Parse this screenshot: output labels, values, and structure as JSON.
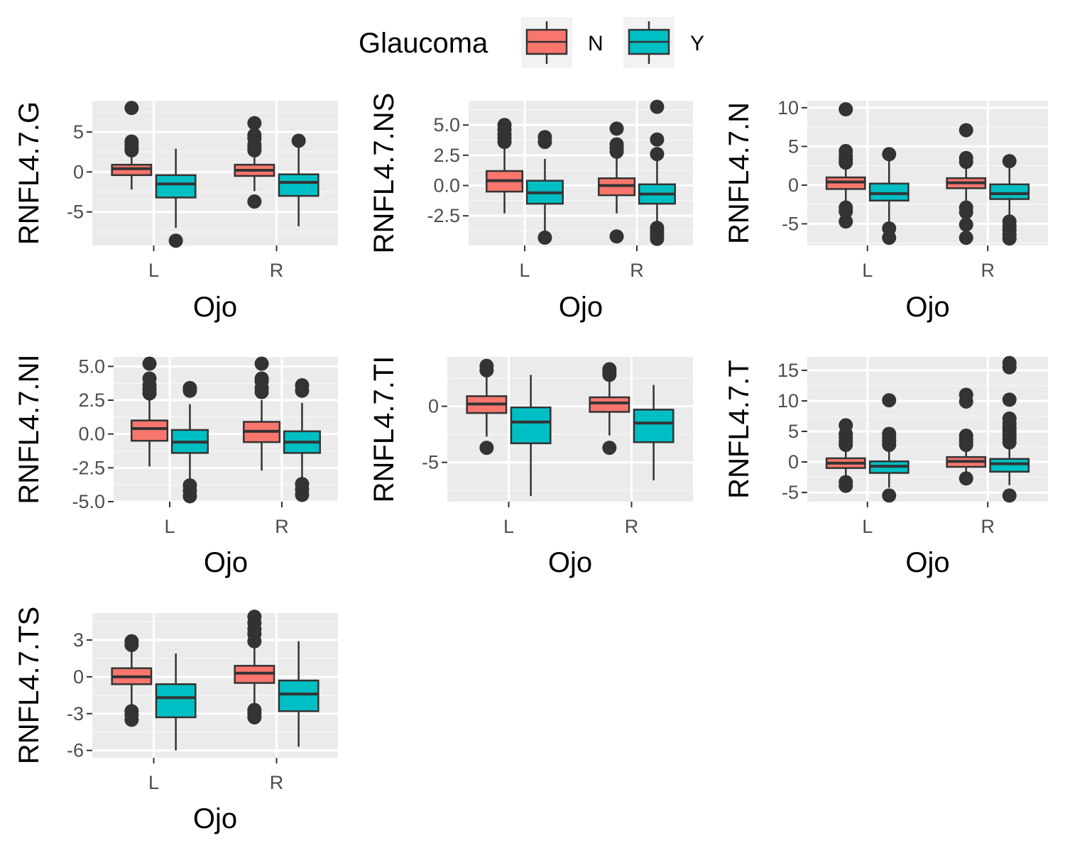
{
  "colors": {
    "panel_bg": "#EBEBEB",
    "grid_major": "#FFFFFF",
    "grid_minor": "#F5F5F5",
    "N": "#F8766D",
    "Y": "#00BFC4",
    "outline": "#333333",
    "tick_text": "#4D4D4D"
  },
  "legend": {
    "title": "Glaucoma",
    "items": [
      {
        "key": "N",
        "label": "N",
        "color": "#F8766D"
      },
      {
        "key": "Y",
        "label": "Y",
        "color": "#00BFC4"
      }
    ]
  },
  "chart_data": [
    {
      "type": "boxplot",
      "ylabel": "RNFL4.7.G",
      "xlabel": "Ojo",
      "categories": [
        "L",
        "R"
      ],
      "ylim": [
        -9.2,
        8.9
      ],
      "yticks": [
        -5,
        0,
        5
      ],
      "yticklabels": [
        "-5",
        "0",
        "5"
      ],
      "boxes": [
        {
          "x": "L",
          "group": "N",
          "whisker_low": -2.2,
          "q1": -0.4,
          "median": 0.4,
          "q3": 0.9,
          "whisker_high": 2.1,
          "outliers": [
            2.7,
            3.0,
            3.4,
            3.8,
            8.0
          ]
        },
        {
          "x": "L",
          "group": "Y",
          "whisker_low": -7.0,
          "q1": -3.2,
          "median": -1.5,
          "q3": -0.4,
          "whisker_high": 2.9,
          "outliers": [
            -8.6
          ]
        },
        {
          "x": "R",
          "group": "N",
          "whisker_low": -2.4,
          "q1": -0.5,
          "median": 0.2,
          "q3": 0.9,
          "whisker_high": 2.3,
          "outliers": [
            -3.7,
            2.7,
            3.1,
            3.4,
            4.2,
            4.6,
            6.1
          ]
        },
        {
          "x": "R",
          "group": "Y",
          "whisker_low": -6.8,
          "q1": -3.0,
          "median": -1.3,
          "q3": -0.3,
          "whisker_high": 3.7,
          "outliers": [
            3.9
          ]
        }
      ]
    },
    {
      "type": "boxplot",
      "ylabel": "RNFL4.7.NS",
      "xlabel": "Ojo",
      "categories": [
        "L",
        "R"
      ],
      "ylim": [
        -4.95,
        7.0
      ],
      "yticks": [
        -2.5,
        0,
        2.5,
        5
      ],
      "yticklabels": [
        "-2.5",
        "0.0",
        "2.5",
        "5.0"
      ],
      "boxes": [
        {
          "x": "L",
          "group": "N",
          "whisker_low": -2.3,
          "q1": -0.5,
          "median": 0.4,
          "q3": 1.2,
          "whisker_high": 3.2,
          "outliers": [
            3.6,
            3.9,
            4.2,
            4.6,
            5.0
          ]
        },
        {
          "x": "L",
          "group": "Y",
          "whisker_low": -4.1,
          "q1": -1.5,
          "median": -0.6,
          "q3": 0.4,
          "whisker_high": 2.2,
          "outliers": [
            -4.3,
            3.6,
            4.0
          ]
        },
        {
          "x": "R",
          "group": "N",
          "whisker_low": -2.3,
          "q1": -0.8,
          "median": 0.0,
          "q3": 0.6,
          "whisker_high": 2.6,
          "outliers": [
            -4.2,
            2.8,
            3.1,
            3.4,
            4.7
          ]
        },
        {
          "x": "R",
          "group": "Y",
          "whisker_low": -3.6,
          "q1": -1.5,
          "median": -0.7,
          "q3": 0.1,
          "whisker_high": 2.3,
          "outliers": [
            -4.4,
            -4.1,
            -3.8,
            -3.5,
            2.6,
            3.8,
            6.5
          ]
        }
      ]
    },
    {
      "type": "boxplot",
      "ylabel": "RNFL4.7.N",
      "xlabel": "Ojo",
      "categories": [
        "L",
        "R"
      ],
      "ylim": [
        -7.8,
        10.9
      ],
      "yticks": [
        -5,
        0,
        5,
        10
      ],
      "yticklabels": [
        "-5",
        "0",
        "5",
        "10"
      ],
      "boxes": [
        {
          "x": "L",
          "group": "N",
          "whisker_low": -2.5,
          "q1": -0.5,
          "median": 0.4,
          "q3": 1.0,
          "whisker_high": 2.6,
          "outliers": [
            -4.7,
            -3.4,
            -2.9,
            2.9,
            3.3,
            3.8,
            4.4,
            9.8
          ]
        },
        {
          "x": "L",
          "group": "Y",
          "whisker_low": -5.2,
          "q1": -2.0,
          "median": -1.1,
          "q3": 0.2,
          "whisker_high": 3.3,
          "outliers": [
            -6.8,
            -5.6,
            4.0
          ]
        },
        {
          "x": "R",
          "group": "N",
          "whisker_low": -2.3,
          "q1": -0.4,
          "median": 0.3,
          "q3": 0.9,
          "whisker_high": 2.5,
          "outliers": [
            -6.8,
            -5.1,
            -3.5,
            -2.9,
            3.0,
            3.5,
            7.1
          ]
        },
        {
          "x": "R",
          "group": "Y",
          "whisker_low": -4.0,
          "q1": -1.8,
          "median": -1.1,
          "q3": 0.1,
          "whisker_high": 2.3,
          "outliers": [
            -6.9,
            -6.4,
            -5.8,
            -5.3,
            -4.7,
            3.1
          ]
        }
      ]
    },
    {
      "type": "boxplot",
      "ylabel": "RNFL4.7.NI",
      "xlabel": "Ojo",
      "categories": [
        "L",
        "R"
      ],
      "ylim": [
        -5.0,
        5.7
      ],
      "yticks": [
        -5,
        -2.5,
        0,
        2.5,
        5
      ],
      "yticklabels": [
        "-5.0",
        "-2.5",
        "0.0",
        "2.5",
        "5.0"
      ],
      "boxes": [
        {
          "x": "L",
          "group": "N",
          "whisker_low": -2.4,
          "q1": -0.5,
          "median": 0.4,
          "q3": 1.0,
          "whisker_high": 2.5,
          "outliers": [
            3.0,
            3.3,
            3.6,
            4.1,
            5.2
          ]
        },
        {
          "x": "L",
          "group": "Y",
          "whisker_low": -3.4,
          "q1": -1.4,
          "median": -0.6,
          "q3": 0.3,
          "whisker_high": 2.2,
          "outliers": [
            -4.6,
            -4.2,
            -3.8,
            3.2,
            3.4
          ]
        },
        {
          "x": "R",
          "group": "N",
          "whisker_low": -2.7,
          "q1": -0.6,
          "median": 0.2,
          "q3": 0.9,
          "whisker_high": 2.5,
          "outliers": [
            3.1,
            3.4,
            3.9,
            4.1,
            5.2
          ]
        },
        {
          "x": "R",
          "group": "Y",
          "whisker_low": -3.4,
          "q1": -1.4,
          "median": -0.6,
          "q3": 0.2,
          "whisker_high": 2.3,
          "outliers": [
            -4.5,
            -4.1,
            -3.7,
            3.2,
            3.6
          ]
        }
      ]
    },
    {
      "type": "boxplot",
      "ylabel": "RNFL4.7.TI",
      "xlabel": "Ojo",
      "categories": [
        "L",
        "R"
      ],
      "ylim": [
        -8.5,
        4.4
      ],
      "yticks": [
        -5,
        0
      ],
      "yticklabels": [
        "-5",
        "0"
      ],
      "boxes": [
        {
          "x": "L",
          "group": "N",
          "whisker_low": -2.7,
          "q1": -0.6,
          "median": 0.2,
          "q3": 0.9,
          "whisker_high": 2.9,
          "outliers": [
            -3.7,
            3.2,
            3.6
          ]
        },
        {
          "x": "L",
          "group": "Y",
          "whisker_low": -8.0,
          "q1": -3.3,
          "median": -1.4,
          "q3": -0.1,
          "whisker_high": 2.8,
          "outliers": []
        },
        {
          "x": "R",
          "group": "N",
          "whisker_low": -2.6,
          "q1": -0.5,
          "median": 0.3,
          "q3": 0.8,
          "whisker_high": 2.6,
          "outliers": [
            -3.7,
            2.8,
            3.0,
            3.3
          ]
        },
        {
          "x": "R",
          "group": "Y",
          "whisker_low": -6.6,
          "q1": -3.2,
          "median": -1.5,
          "q3": -0.3,
          "whisker_high": 1.9,
          "outliers": []
        }
      ]
    },
    {
      "type": "boxplot",
      "ylabel": "RNFL4.7.T",
      "xlabel": "Ojo",
      "categories": [
        "L",
        "R"
      ],
      "ylim": [
        -6.5,
        17.2
      ],
      "yticks": [
        -5,
        0,
        5,
        10,
        15
      ],
      "yticklabels": [
        "-5",
        "0",
        "5",
        "10",
        "15"
      ],
      "boxes": [
        {
          "x": "L",
          "group": "N",
          "whisker_low": -2.2,
          "q1": -1.0,
          "median": -0.2,
          "q3": 0.6,
          "whisker_high": 2.4,
          "outliers": [
            -3.9,
            -3.3,
            2.8,
            3.3,
            4.0,
            4.6,
            6.0
          ]
        },
        {
          "x": "L",
          "group": "Y",
          "whisker_low": -4.2,
          "q1": -1.8,
          "median": -0.7,
          "q3": 0.1,
          "whisker_high": 2.5,
          "outliers": [
            -5.5,
            2.8,
            3.4,
            4.0,
            4.6,
            10.1
          ]
        },
        {
          "x": "R",
          "group": "N",
          "whisker_low": -2.0,
          "q1": -0.8,
          "median": 0.1,
          "q3": 0.8,
          "whisker_high": 2.6,
          "outliers": [
            -2.7,
            2.8,
            3.3,
            3.8,
            4.3,
            9.9,
            11.0
          ]
        },
        {
          "x": "R",
          "group": "Y",
          "whisker_low": -3.8,
          "q1": -1.6,
          "median": -0.3,
          "q3": 0.5,
          "whisker_high": 2.8,
          "outliers": [
            -5.5,
            3.2,
            3.8,
            4.4,
            5.0,
            5.6,
            6.3,
            7.1,
            10.2,
            15.5,
            16.2
          ]
        }
      ]
    },
    {
      "type": "boxplot",
      "ylabel": "RNFL4.7.TS",
      "xlabel": "Ojo",
      "categories": [
        "L",
        "R"
      ],
      "ylim": [
        -6.6,
        5.2
      ],
      "yticks": [
        -6,
        -3,
        0,
        3
      ],
      "yticklabels": [
        "-6",
        "-3",
        "0",
        "3"
      ],
      "boxes": [
        {
          "x": "L",
          "group": "N",
          "whisker_low": -2.5,
          "q1": -0.6,
          "median": 0.0,
          "q3": 0.7,
          "whisker_high": 2.2,
          "outliers": [
            -3.5,
            -3.1,
            -2.8,
            2.6,
            2.9
          ]
        },
        {
          "x": "L",
          "group": "Y",
          "whisker_low": -6.0,
          "q1": -3.3,
          "median": -1.7,
          "q3": -0.6,
          "whisker_high": 1.9,
          "outliers": []
        },
        {
          "x": "R",
          "group": "N",
          "whisker_low": -2.4,
          "q1": -0.5,
          "median": 0.3,
          "q3": 0.9,
          "whisker_high": 2.4,
          "outliers": [
            -3.3,
            -3.0,
            -2.7,
            2.9,
            3.5,
            3.9,
            4.4,
            4.9
          ]
        },
        {
          "x": "R",
          "group": "Y",
          "whisker_low": -5.7,
          "q1": -2.8,
          "median": -1.4,
          "q3": -0.3,
          "whisker_high": 2.9,
          "outliers": []
        }
      ]
    }
  ]
}
